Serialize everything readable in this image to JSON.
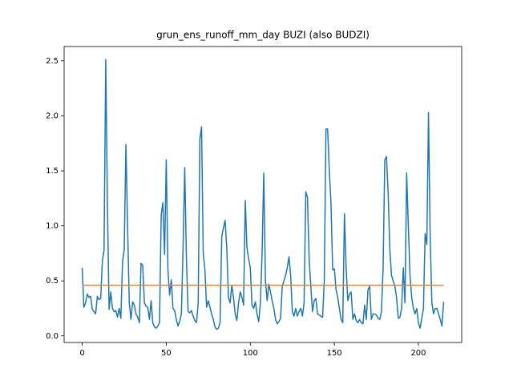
{
  "chart_data": {
    "type": "line",
    "title": "grun_ens_runoff_mm_day BUZI (also BUDZI)",
    "xlim": [
      -10.75,
      225.75
    ],
    "xticks": [
      0,
      50,
      100,
      150,
      200
    ],
    "ylim": [
      -0.06,
      2.63
    ],
    "yticks": [
      {
        "value": 0,
        "label": "0.0"
      },
      {
        "value": 0.5,
        "label": "0.5"
      },
      {
        "value": 1,
        "label": "1.0"
      },
      {
        "value": 1.5,
        "label": "1.5"
      },
      {
        "value": 2,
        "label": "2.0"
      },
      {
        "value": 2.5,
        "label": "2.5"
      }
    ],
    "series": [
      {
        "color": "#1f77b4",
        "x": [
          0,
          1,
          2,
          3,
          4,
          5,
          6,
          7,
          8,
          9,
          10,
          11,
          12,
          13,
          14,
          15,
          16,
          17,
          18,
          19,
          20,
          21,
          22,
          23,
          24,
          25,
          26,
          27,
          28,
          29,
          30,
          31,
          32,
          33,
          34,
          35,
          36,
          37,
          38,
          39,
          40,
          41,
          42,
          43,
          44,
          45,
          46,
          47,
          48,
          49,
          50,
          51,
          52,
          53,
          54,
          55,
          56,
          57,
          58,
          59,
          60,
          61,
          62,
          63,
          64,
          65,
          66,
          67,
          68,
          69,
          70,
          71,
          72,
          73,
          74,
          75,
          76,
          77,
          78,
          79,
          80,
          81,
          82,
          83,
          84,
          85,
          86,
          87,
          88,
          89,
          90,
          91,
          92,
          93,
          94,
          95,
          96,
          97,
          98,
          99,
          100,
          101,
          102,
          103,
          104,
          105,
          106,
          107,
          108,
          109,
          110,
          111,
          112,
          113,
          114,
          115,
          116,
          117,
          118,
          119,
          120,
          121,
          122,
          123,
          124,
          125,
          126,
          127,
          128,
          129,
          130,
          131,
          132,
          133,
          134,
          135,
          136,
          137,
          138,
          139,
          140,
          141,
          142,
          143,
          144,
          145,
          146,
          147,
          148,
          149,
          150,
          151,
          152,
          153,
          154,
          155,
          156,
          157,
          158,
          159,
          160,
          161,
          162,
          163,
          164,
          165,
          166,
          167,
          168,
          169,
          170,
          171,
          172,
          173,
          174,
          175,
          176,
          177,
          178,
          179,
          180,
          181,
          182,
          183,
          184,
          185,
          186,
          187,
          188,
          189,
          190,
          191,
          192,
          193,
          194,
          195,
          196,
          197,
          198,
          199,
          200,
          201,
          202,
          203,
          204,
          205,
          206,
          207,
          208,
          209,
          210,
          211,
          212,
          213,
          214,
          215
        ],
        "values": [
          0.62,
          0.26,
          0.3,
          0.38,
          0.35,
          0.36,
          0.24,
          0.22,
          0.2,
          0.36,
          0.33,
          0.34,
          0.68,
          0.78,
          2.51,
          1.2,
          0.24,
          0.4,
          0.25,
          0.22,
          0.23,
          0.17,
          0.25,
          0.16,
          0.68,
          0.78,
          1.74,
          1.0,
          0.3,
          0.15,
          0.31,
          0.28,
          0.2,
          0.17,
          0.12,
          0.66,
          0.64,
          0.3,
          0.27,
          0.26,
          0.15,
          0.32,
          0.12,
          0.08,
          0.07,
          0.09,
          0.12,
          1.1,
          1.21,
          0.74,
          1.6,
          0.6,
          0.37,
          0.51,
          0.25,
          0.23,
          0.15,
          0.09,
          0.13,
          0.2,
          0.8,
          1.53,
          0.7,
          0.22,
          0.21,
          0.23,
          0.18,
          0.14,
          0.12,
          0.3,
          1.79,
          1.9,
          0.75,
          0.6,
          0.26,
          0.32,
          0.26,
          0.2,
          0.15,
          0.08,
          0.06,
          0.07,
          0.12,
          0.9,
          0.98,
          1.05,
          0.8,
          0.35,
          0.3,
          0.46,
          0.35,
          0.2,
          0.14,
          0.3,
          0.4,
          0.35,
          0.28,
          1.23,
          0.8,
          0.7,
          0.62,
          0.28,
          0.25,
          0.31,
          0.2,
          0.13,
          0.3,
          0.75,
          1.48,
          0.5,
          0.32,
          0.47,
          0.4,
          0.32,
          0.25,
          0.15,
          0.11,
          0.13,
          0.16,
          0.45,
          0.5,
          0.55,
          0.62,
          0.72,
          0.55,
          0.22,
          0.18,
          0.25,
          0.18,
          0.22,
          0.25,
          0.18,
          0.3,
          1.31,
          1.26,
          0.7,
          0.45,
          0.22,
          0.32,
          0.34,
          0.2,
          0.19,
          0.18,
          0.17,
          0.5,
          1.88,
          1.88,
          1.5,
          1.2,
          0.6,
          0.61,
          0.42,
          0.35,
          0.25,
          0.15,
          0.12,
          1.11,
          0.62,
          0.32,
          0.38,
          0.4,
          0.15,
          0.2,
          0.14,
          0.12,
          0.15,
          0.12,
          0.11,
          0.28,
          0.15,
          0.42,
          0.45,
          0.15,
          0.2,
          0.2,
          0.19,
          0.16,
          0.15,
          0.22,
          0.62,
          1.6,
          1.63,
          1.3,
          0.78,
          0.55,
          0.5,
          0.45,
          0.35,
          0.16,
          0.17,
          0.25,
          0.62,
          0.3,
          1.48,
          1.0,
          0.55,
          0.35,
          0.25,
          0.2,
          0.25,
          0.12,
          0.07,
          0.16,
          0.25,
          0.93,
          0.83,
          2.03,
          0.9,
          0.3,
          0.2,
          0.25,
          0.25,
          0.2,
          0.15,
          0.09,
          0.31
        ]
      },
      {
        "color": "#ff7f0e",
        "x": [
          0,
          215
        ],
        "values": [
          0.46,
          0.46
        ]
      }
    ]
  }
}
